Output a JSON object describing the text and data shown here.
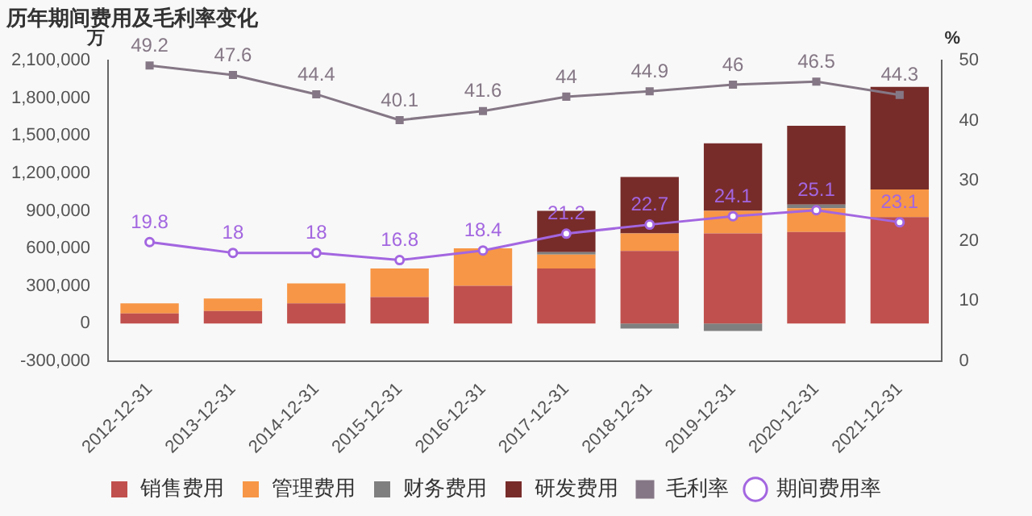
{
  "chart_data": {
    "type": "bar",
    "title": "历年期间费用及毛利率变化",
    "ylabel": "万",
    "y2label": "%",
    "categories": [
      "2012-12-31",
      "2013-12-31",
      "2014-12-31",
      "2015-12-31",
      "2016-12-31",
      "2017-12-31",
      "2018-12-31",
      "2019-12-31",
      "2020-12-31",
      "2021-12-31"
    ],
    "stacked": true,
    "legend": "bottom",
    "grid": false,
    "ylim": [
      -300000,
      2100000
    ],
    "yticks": [
      {
        "value": -300000,
        "label": "-300,000"
      },
      0,
      {
        "value": 300000,
        "label": "300,000"
      },
      {
        "value": 600000,
        "label": "600,000"
      },
      {
        "value": 900000,
        "label": "900,000"
      },
      {
        "value": 1200000,
        "label": "1,200,000"
      },
      {
        "value": 1500000,
        "label": "1,500,000"
      },
      {
        "value": 1800000,
        "label": "1,800,000"
      },
      {
        "value": 2100000,
        "label": "2,100,000"
      }
    ],
    "y2lim": [
      0,
      50
    ],
    "y2ticks": [
      0,
      10,
      20,
      30,
      40,
      50
    ],
    "series": [
      {
        "name": "销售费用",
        "color": "#c0504d",
        "values": [
          80000,
          100000,
          160000,
          210000,
          300000,
          440000,
          580000,
          720000,
          730000,
          850000
        ]
      },
      {
        "name": "管理费用",
        "color": "#f79646",
        "values": [
          80000,
          100000,
          160000,
          230000,
          300000,
          110000,
          140000,
          180000,
          190000,
          220000
        ]
      },
      {
        "name": "财务费用",
        "color": "#7f7f7f",
        "values": [
          0,
          0,
          0,
          0,
          0,
          20000,
          -40000,
          -60000,
          30000,
          0
        ]
      },
      {
        "name": "研发费用",
        "color": "#772c2a",
        "values": [
          0,
          0,
          0,
          0,
          0,
          330000,
          450000,
          540000,
          630000,
          820000
        ]
      },
      {
        "name": "毛利率",
        "type": "line",
        "axis": "y2",
        "color": "#857785",
        "marker": "square",
        "values": [
          49.2,
          47.6,
          44.4,
          40.1,
          41.6,
          44,
          44.9,
          46,
          46.5,
          44.3
        ],
        "value_labels": [
          "49.2",
          "47.6",
          "44.4",
          "40.1",
          "41.6",
          "44",
          "44.9",
          "46",
          "46.5",
          "44.3"
        ]
      },
      {
        "name": "期间费用率",
        "type": "line",
        "axis": "y2",
        "color": "#a366e0",
        "marker": "circle",
        "values": [
          19.8,
          18,
          18,
          16.8,
          18.4,
          21.2,
          22.7,
          24.1,
          25.1,
          23.1
        ],
        "value_labels": [
          "19.8",
          "18",
          "18",
          "16.8",
          "18.4",
          "21.2",
          "22.7",
          "24.1",
          "25.1",
          "23.1"
        ]
      }
    ]
  }
}
